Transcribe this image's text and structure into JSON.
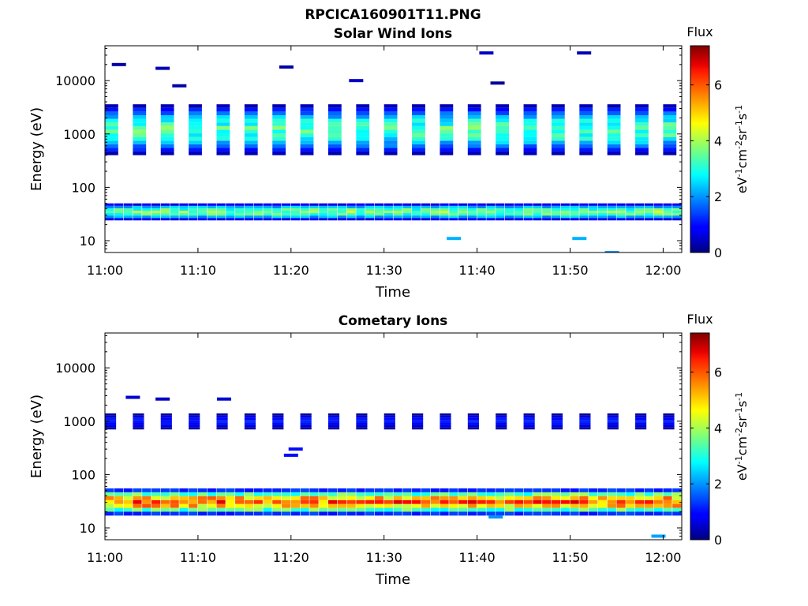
{
  "figure_title": "RPCICA160901T11.PNG",
  "chart_data": [
    {
      "type": "heatmap",
      "title": "Solar Wind Ions",
      "xlabel": "Time",
      "ylabel": "Energy (eV)",
      "yscale": "log",
      "xlim": [
        "11:00",
        "12:02"
      ],
      "ylim": [
        6,
        45000
      ],
      "x_ticks": [
        "11:00",
        "11:10",
        "11:20",
        "11:30",
        "11:40",
        "11:50",
        "12:00"
      ],
      "y_ticks": [
        10,
        100,
        1000,
        10000
      ],
      "y_tick_labels": [
        "10",
        "100",
        "1000",
        "10000"
      ],
      "colorbar": {
        "title": "Flux",
        "label": "eV-1cm-2sr-1s-1",
        "range": [
          0,
          7.4
        ],
        "ticks": [
          0,
          2,
          4,
          6
        ],
        "tick_labels": [
          "0",
          "2",
          "4",
          "6"
        ],
        "colormap": "jet"
      },
      "bands": [
        {
          "t_start": 0,
          "t_end": 62,
          "e_low": 24,
          "e_high": 50,
          "flux_peak": 4.0,
          "note": "narrow low-energy band"
        },
        {
          "t_start": 0,
          "t_end": 62,
          "e_low": 400,
          "e_high": 3600,
          "flux_peak": 3.6,
          "note": "main solar wind band, 1.5 min sweeps"
        }
      ],
      "sparse_points": [
        {
          "t": 1.5,
          "e": 20000,
          "flux": 0.3
        },
        {
          "t": 6.2,
          "e": 17000,
          "flux": 0.4
        },
        {
          "t": 8.0,
          "e": 8000,
          "flux": 0.3
        },
        {
          "t": 19.5,
          "e": 18000,
          "flux": 0.3
        },
        {
          "t": 27.0,
          "e": 10000,
          "flux": 0.5
        },
        {
          "t": 37.5,
          "e": 11,
          "flux": 2.2
        },
        {
          "t": 41.0,
          "e": 33000,
          "flux": 0.5
        },
        {
          "t": 42.2,
          "e": 9000,
          "flux": 0.2
        },
        {
          "t": 51.0,
          "e": 11,
          "flux": 2.2
        },
        {
          "t": 51.5,
          "e": 33000,
          "flux": 0.4
        },
        {
          "t": 54.5,
          "e": 6,
          "flux": 2.0
        }
      ]
    },
    {
      "type": "heatmap",
      "title": "Cometary Ions",
      "xlabel": "Time",
      "ylabel": "Energy (eV)",
      "yscale": "log",
      "xlim": [
        "11:00",
        "12:02"
      ],
      "ylim": [
        6,
        45000
      ],
      "x_ticks": [
        "11:00",
        "11:10",
        "11:20",
        "11:30",
        "11:40",
        "11:50",
        "12:00"
      ],
      "y_ticks": [
        10,
        100,
        1000,
        10000
      ],
      "y_tick_labels": [
        "10",
        "100",
        "1000",
        "10000"
      ],
      "colorbar": {
        "title": "Flux",
        "label": "eV-1cm-2sr-1s-1",
        "range": [
          0,
          7.4
        ],
        "ticks": [
          0,
          2,
          4,
          6
        ],
        "tick_labels": [
          "0",
          "2",
          "4",
          "6"
        ],
        "colormap": "jet"
      },
      "bands": [
        {
          "t_start": 0,
          "t_end": 62,
          "e_low": 17,
          "e_high": 55,
          "flux_peak": 6.2,
          "note": "dense cometary ion band"
        },
        {
          "t_start": 0,
          "t_end": 62,
          "e_low": 700,
          "e_high": 1400,
          "flux_peak": 1.2,
          "note": "sparse high-energy blocks"
        }
      ],
      "sparse_points": [
        {
          "t": 3.0,
          "e": 2800,
          "flux": 0.6
        },
        {
          "t": 6.2,
          "e": 2600,
          "flux": 0.5
        },
        {
          "t": 12.8,
          "e": 2600,
          "flux": 0.6
        },
        {
          "t": 20.0,
          "e": 230,
          "flux": 1.0
        },
        {
          "t": 20.5,
          "e": 300,
          "flux": 1.0
        },
        {
          "t": 42.0,
          "e": 16,
          "flux": 2.0
        },
        {
          "t": 59.5,
          "e": 7,
          "flux": 2.1
        }
      ]
    }
  ]
}
